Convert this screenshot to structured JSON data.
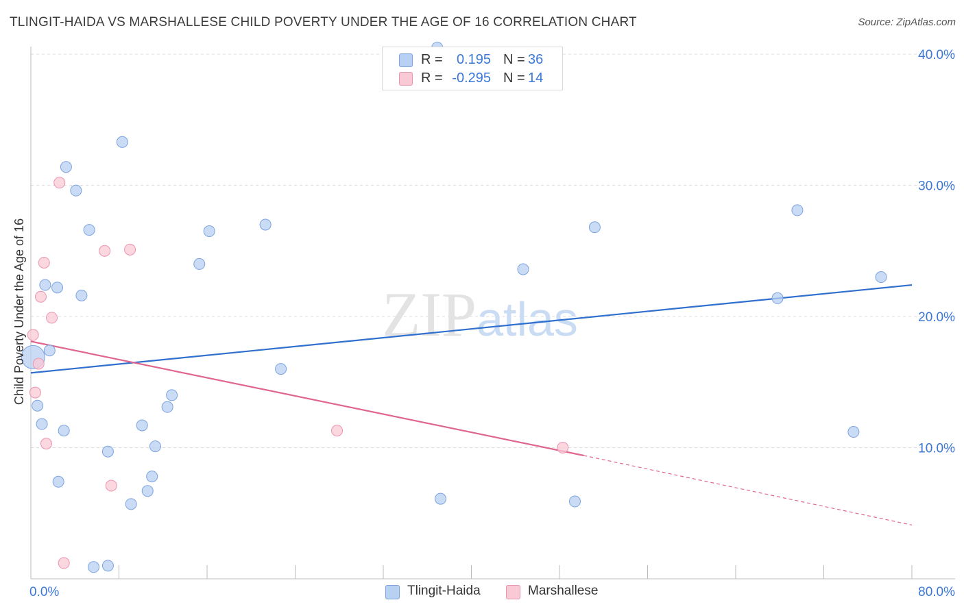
{
  "title": "TLINGIT-HAIDA VS MARSHALLESE CHILD POVERTY UNDER THE AGE OF 16 CORRELATION CHART",
  "source": "Source: ZipAtlas.com",
  "watermark": {
    "part1": "ZIP",
    "part2": "atlas"
  },
  "legend": {
    "rows": [
      {
        "r_label": "R =",
        "r_value": "0.195",
        "n_label": "N =",
        "n_value": "36",
        "color": "#b8d0f2",
        "border": "#7ba3de"
      },
      {
        "r_label": "R =",
        "r_value": "-0.295",
        "n_label": "N =",
        "n_value": "14",
        "color": "#f9c9d6",
        "border": "#ec93ae"
      }
    ]
  },
  "bottom_legend": {
    "items": [
      {
        "label": "Tlingit-Haida",
        "color": "#b8d0f2",
        "border": "#7ba3de"
      },
      {
        "label": "Marshallese",
        "color": "#f9c9d6",
        "border": "#ec93ae"
      }
    ]
  },
  "chart_data": {
    "type": "scatter",
    "title": "TLINGIT-HAIDA VS MARSHALLESE CHILD POVERTY UNDER THE AGE OF 16 CORRELATION CHART",
    "xlabel": "",
    "ylabel": "Child Poverty Under the Age of 16",
    "xlim": [
      0,
      80
    ],
    "ylim": [
      0,
      40
    ],
    "x_tick_labels": [
      {
        "value": 0,
        "label": "0.0%"
      },
      {
        "value": 80,
        "label": "80.0%"
      }
    ],
    "y_tick_labels": [
      {
        "value": 10,
        "label": "10.0%"
      },
      {
        "value": 20,
        "label": "20.0%"
      },
      {
        "value": 30,
        "label": "30.0%"
      },
      {
        "value": 40,
        "label": "40.0%"
      }
    ],
    "grid": true,
    "series": [
      {
        "name": "Tlingit-Haida",
        "color": "#b8d0f2",
        "stroke": "#7ba3de",
        "line_color": "#2f6fcf",
        "points": [
          [
            0.2,
            16.9
          ],
          [
            0.6,
            13.2
          ],
          [
            1.0,
            11.8
          ],
          [
            1.3,
            22.4
          ],
          [
            1.7,
            17.4
          ],
          [
            2.4,
            22.2
          ],
          [
            2.5,
            7.4
          ],
          [
            3.0,
            11.3
          ],
          [
            3.2,
            31.4
          ],
          [
            4.1,
            29.6
          ],
          [
            4.6,
            21.6
          ],
          [
            5.3,
            26.6
          ],
          [
            5.7,
            0.9
          ],
          [
            7.0,
            1.0
          ],
          [
            7.0,
            9.7
          ],
          [
            8.3,
            33.3
          ],
          [
            9.1,
            5.7
          ],
          [
            10.1,
            11.7
          ],
          [
            10.6,
            6.7
          ],
          [
            11.0,
            7.8
          ],
          [
            11.3,
            10.1
          ],
          [
            12.4,
            13.1
          ],
          [
            12.8,
            14.0
          ],
          [
            15.3,
            24.0
          ],
          [
            16.2,
            26.5
          ],
          [
            21.3,
            27.0
          ],
          [
            22.7,
            16.0
          ],
          [
            37.2,
            6.1
          ],
          [
            36.9,
            40.5
          ],
          [
            44.7,
            23.6
          ],
          [
            49.4,
            5.9
          ],
          [
            51.2,
            26.8
          ],
          [
            67.8,
            21.4
          ],
          [
            69.6,
            28.1
          ],
          [
            74.7,
            11.2
          ],
          [
            77.2,
            23.0
          ]
        ],
        "trend": {
          "x": [
            0,
            80
          ],
          "y": [
            15.7,
            22.4
          ],
          "dashed_extension": false
        }
      },
      {
        "name": "Marshallese",
        "color": "#f9c9d6",
        "stroke": "#ec93ae",
        "line_color": "#e0668e",
        "points": [
          [
            0.2,
            18.6
          ],
          [
            0.4,
            14.2
          ],
          [
            0.7,
            16.4
          ],
          [
            0.9,
            21.5
          ],
          [
            1.2,
            24.1
          ],
          [
            1.4,
            10.3
          ],
          [
            1.9,
            19.9
          ],
          [
            2.6,
            30.2
          ],
          [
            3.0,
            1.2
          ],
          [
            6.7,
            25.0
          ],
          [
            7.3,
            7.1
          ],
          [
            9.0,
            25.1
          ],
          [
            27.8,
            11.3
          ],
          [
            48.3,
            10.0
          ]
        ],
        "trend": {
          "x": [
            0,
            50.2
          ],
          "y": [
            18.1,
            9.4
          ],
          "dashed_to": [
            80,
            4.1
          ]
        }
      }
    ]
  }
}
